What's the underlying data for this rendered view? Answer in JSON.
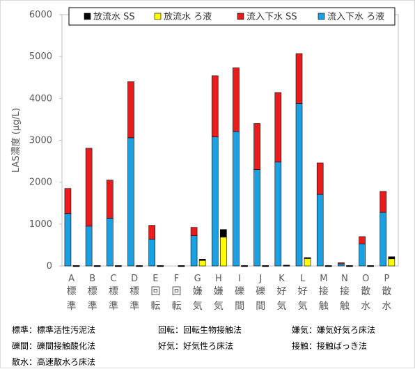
{
  "chart_data": {
    "type": "bar",
    "stacked": true,
    "ylabel": "LAS濃度 (μg/L)",
    "ylim": [
      0,
      6000
    ],
    "yticks": [
      0,
      1000,
      2000,
      3000,
      4000,
      5000,
      6000
    ],
    "grid": false,
    "legend_position": "top-right",
    "groups": [
      {
        "letter": "A",
        "method": [
          "標",
          "準"
        ]
      },
      {
        "letter": "B",
        "method": [
          "標",
          "準"
        ]
      },
      {
        "letter": "C",
        "method": [
          "標",
          "準"
        ]
      },
      {
        "letter": "D",
        "method": [
          "標",
          "準"
        ]
      },
      {
        "letter": "E",
        "method": [
          "回",
          "転"
        ]
      },
      {
        "letter": "F",
        "method": [
          "回",
          "転"
        ]
      },
      {
        "letter": "G",
        "method": [
          "嫌",
          "気"
        ]
      },
      {
        "letter": "H",
        "method": [
          "嫌",
          "気"
        ]
      },
      {
        "letter": "I",
        "method": [
          "礫",
          "間"
        ]
      },
      {
        "letter": "J",
        "method": [
          "礫",
          "間"
        ]
      },
      {
        "letter": "K",
        "method": [
          "好",
          "気"
        ]
      },
      {
        "letter": "L",
        "method": [
          "好",
          "気"
        ]
      },
      {
        "letter": "M",
        "method": [
          "接",
          "触"
        ]
      },
      {
        "letter": "N",
        "method": [
          "接",
          "触"
        ]
      },
      {
        "letter": "O",
        "method": [
          "散",
          "水"
        ]
      },
      {
        "letter": "P",
        "method": [
          "散",
          "水"
        ]
      }
    ],
    "inflow_series": [
      {
        "name": "流入下水 ろ液",
        "color": "#1ba1e2",
        "values": [
          1250,
          950,
          1140,
          3060,
          640,
          0,
          720,
          3080,
          3210,
          2300,
          2480,
          3880,
          1710,
          50,
          530,
          1280
        ]
      },
      {
        "name": "流入下水 SS",
        "color": "#e81c1c",
        "values": [
          600,
          1860,
          910,
          1340,
          330,
          0,
          200,
          1460,
          1520,
          1100,
          1660,
          1190,
          750,
          30,
          170,
          500
        ]
      }
    ],
    "effluent_series": [
      {
        "name": "放流水 ろ液",
        "color": "#ffff00",
        "values": [
          0,
          0,
          0,
          0,
          0,
          0,
          130,
          690,
          0,
          0,
          0,
          180,
          0,
          0,
          0,
          170
        ]
      },
      {
        "name": "放流水 SS",
        "color": "#000000",
        "values": [
          10,
          10,
          10,
          10,
          10,
          10,
          30,
          180,
          10,
          10,
          20,
          20,
          10,
          10,
          10,
          50
        ]
      }
    ],
    "legend_order": [
      "放流水 SS",
      "放流水 ろ液",
      "流入下水 SS",
      "流入下水 ろ液"
    ]
  },
  "notes": [
    {
      "text": "標準：標準活性汚泥法"
    },
    {
      "text": "回転：回転生物接触法"
    },
    {
      "text": "嫌気：嫌気好気ろ床法"
    },
    {
      "text": "礫間：礫間接触酸化法"
    },
    {
      "text": "好気：好気性ろ床法"
    },
    {
      "text": "接触：接触ばっき法"
    },
    {
      "text": "散水：高速散水ろ床法"
    }
  ]
}
